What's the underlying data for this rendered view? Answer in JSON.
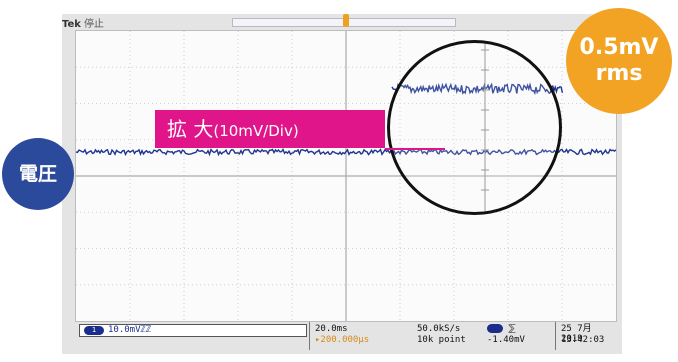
{
  "scope": {
    "brand": "Tek",
    "run_state": "停止"
  },
  "annotations": {
    "zoom_main": "拡 大",
    "zoom_scale": "(10mV/Div)",
    "rms_value": "0.5mV",
    "rms_unit": "rms",
    "voltage_label": "電圧"
  },
  "status_bar": {
    "channel_number": "1",
    "channel_scale": "10.0mVℤℤ",
    "timebase": "20.0ms",
    "trigger_position": "▸200.000µs",
    "sample_rate": "50.0kS/s",
    "record_length": "10k point",
    "trigger_channel": "1",
    "trigger_slope": "⅀",
    "trigger_level": "-1.40mV",
    "date": "25 7月 2019",
    "time": "13:42:03"
  },
  "colors": {
    "trace": "#1f3590",
    "accent_pink": "#e0158a",
    "accent_orange": "#f3a324",
    "badge_blue": "#2c4a9c"
  }
}
